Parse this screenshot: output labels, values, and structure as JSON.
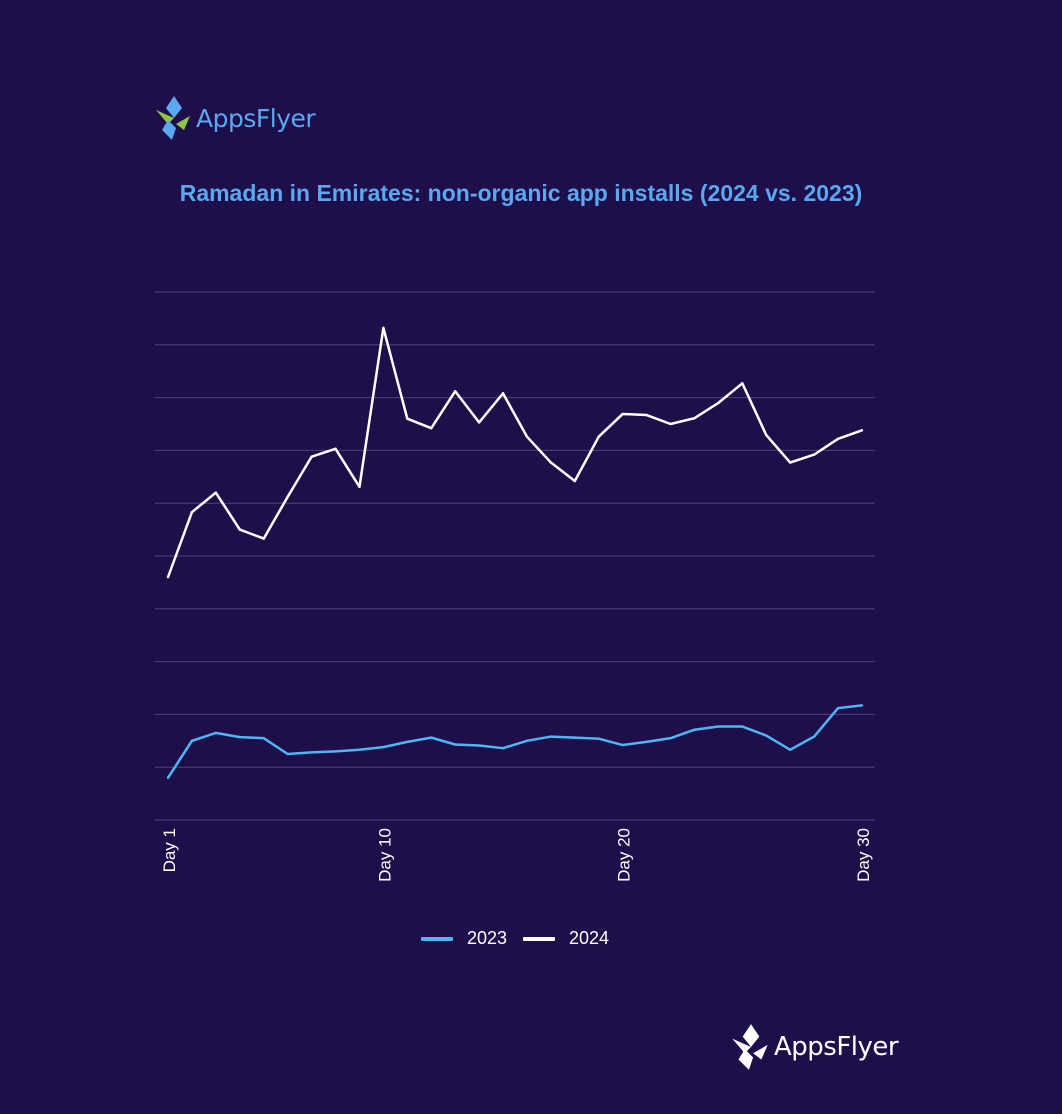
{
  "branding": {
    "top_logo_text": "AppsFlyer",
    "bottom_logo_text": "AppsFlyer",
    "top_logo_colors": [
      "#8fc641",
      "#5aa8f0"
    ],
    "bottom_logo_color": "#ffffff"
  },
  "colors": {
    "background": "#1e0f4b",
    "title": "#5aa8f0",
    "grid": "#4a4578",
    "series_2023": "#4db6f5",
    "series_2024": "#ffffff"
  },
  "chart_data": {
    "type": "line",
    "title": "Ramadan in Emirates: non-organic app installs (2024 vs. 2023)",
    "x": [
      1,
      2,
      3,
      4,
      5,
      6,
      7,
      8,
      9,
      10,
      11,
      12,
      13,
      14,
      15,
      16,
      17,
      18,
      19,
      20,
      21,
      22,
      23,
      24,
      25,
      26,
      27,
      28,
      29,
      30
    ],
    "x_tick_labels": [
      "Day 1",
      "Day 10",
      "Day 20",
      "Day 30"
    ],
    "x_tick_values": [
      1,
      10,
      20,
      30
    ],
    "ylim": [
      0,
      10
    ],
    "y_gridlines": 10,
    "y_tick_labels_shown": false,
    "grid": true,
    "legend": "bottom-center",
    "series": [
      {
        "name": "2023",
        "color": "#4db6f5",
        "values": [
          0.8,
          1.5,
          1.65,
          1.57,
          1.55,
          1.25,
          1.28,
          1.3,
          1.33,
          1.38,
          1.48,
          1.56,
          1.43,
          1.41,
          1.36,
          1.5,
          1.58,
          1.56,
          1.54,
          1.42,
          1.48,
          1.55,
          1.71,
          1.77,
          1.77,
          1.6,
          1.33,
          1.58,
          2.12,
          2.17
        ]
      },
      {
        "name": "2024",
        "color": "#ffffff",
        "values": [
          4.6,
          5.83,
          6.2,
          5.5,
          5.33,
          6.12,
          6.88,
          7.03,
          6.31,
          9.32,
          7.6,
          7.42,
          8.12,
          7.53,
          8.08,
          7.26,
          6.77,
          6.42,
          7.26,
          7.69,
          7.67,
          7.5,
          7.61,
          7.9,
          8.27,
          7.29,
          6.77,
          6.92,
          7.22,
          7.38
        ]
      }
    ]
  }
}
